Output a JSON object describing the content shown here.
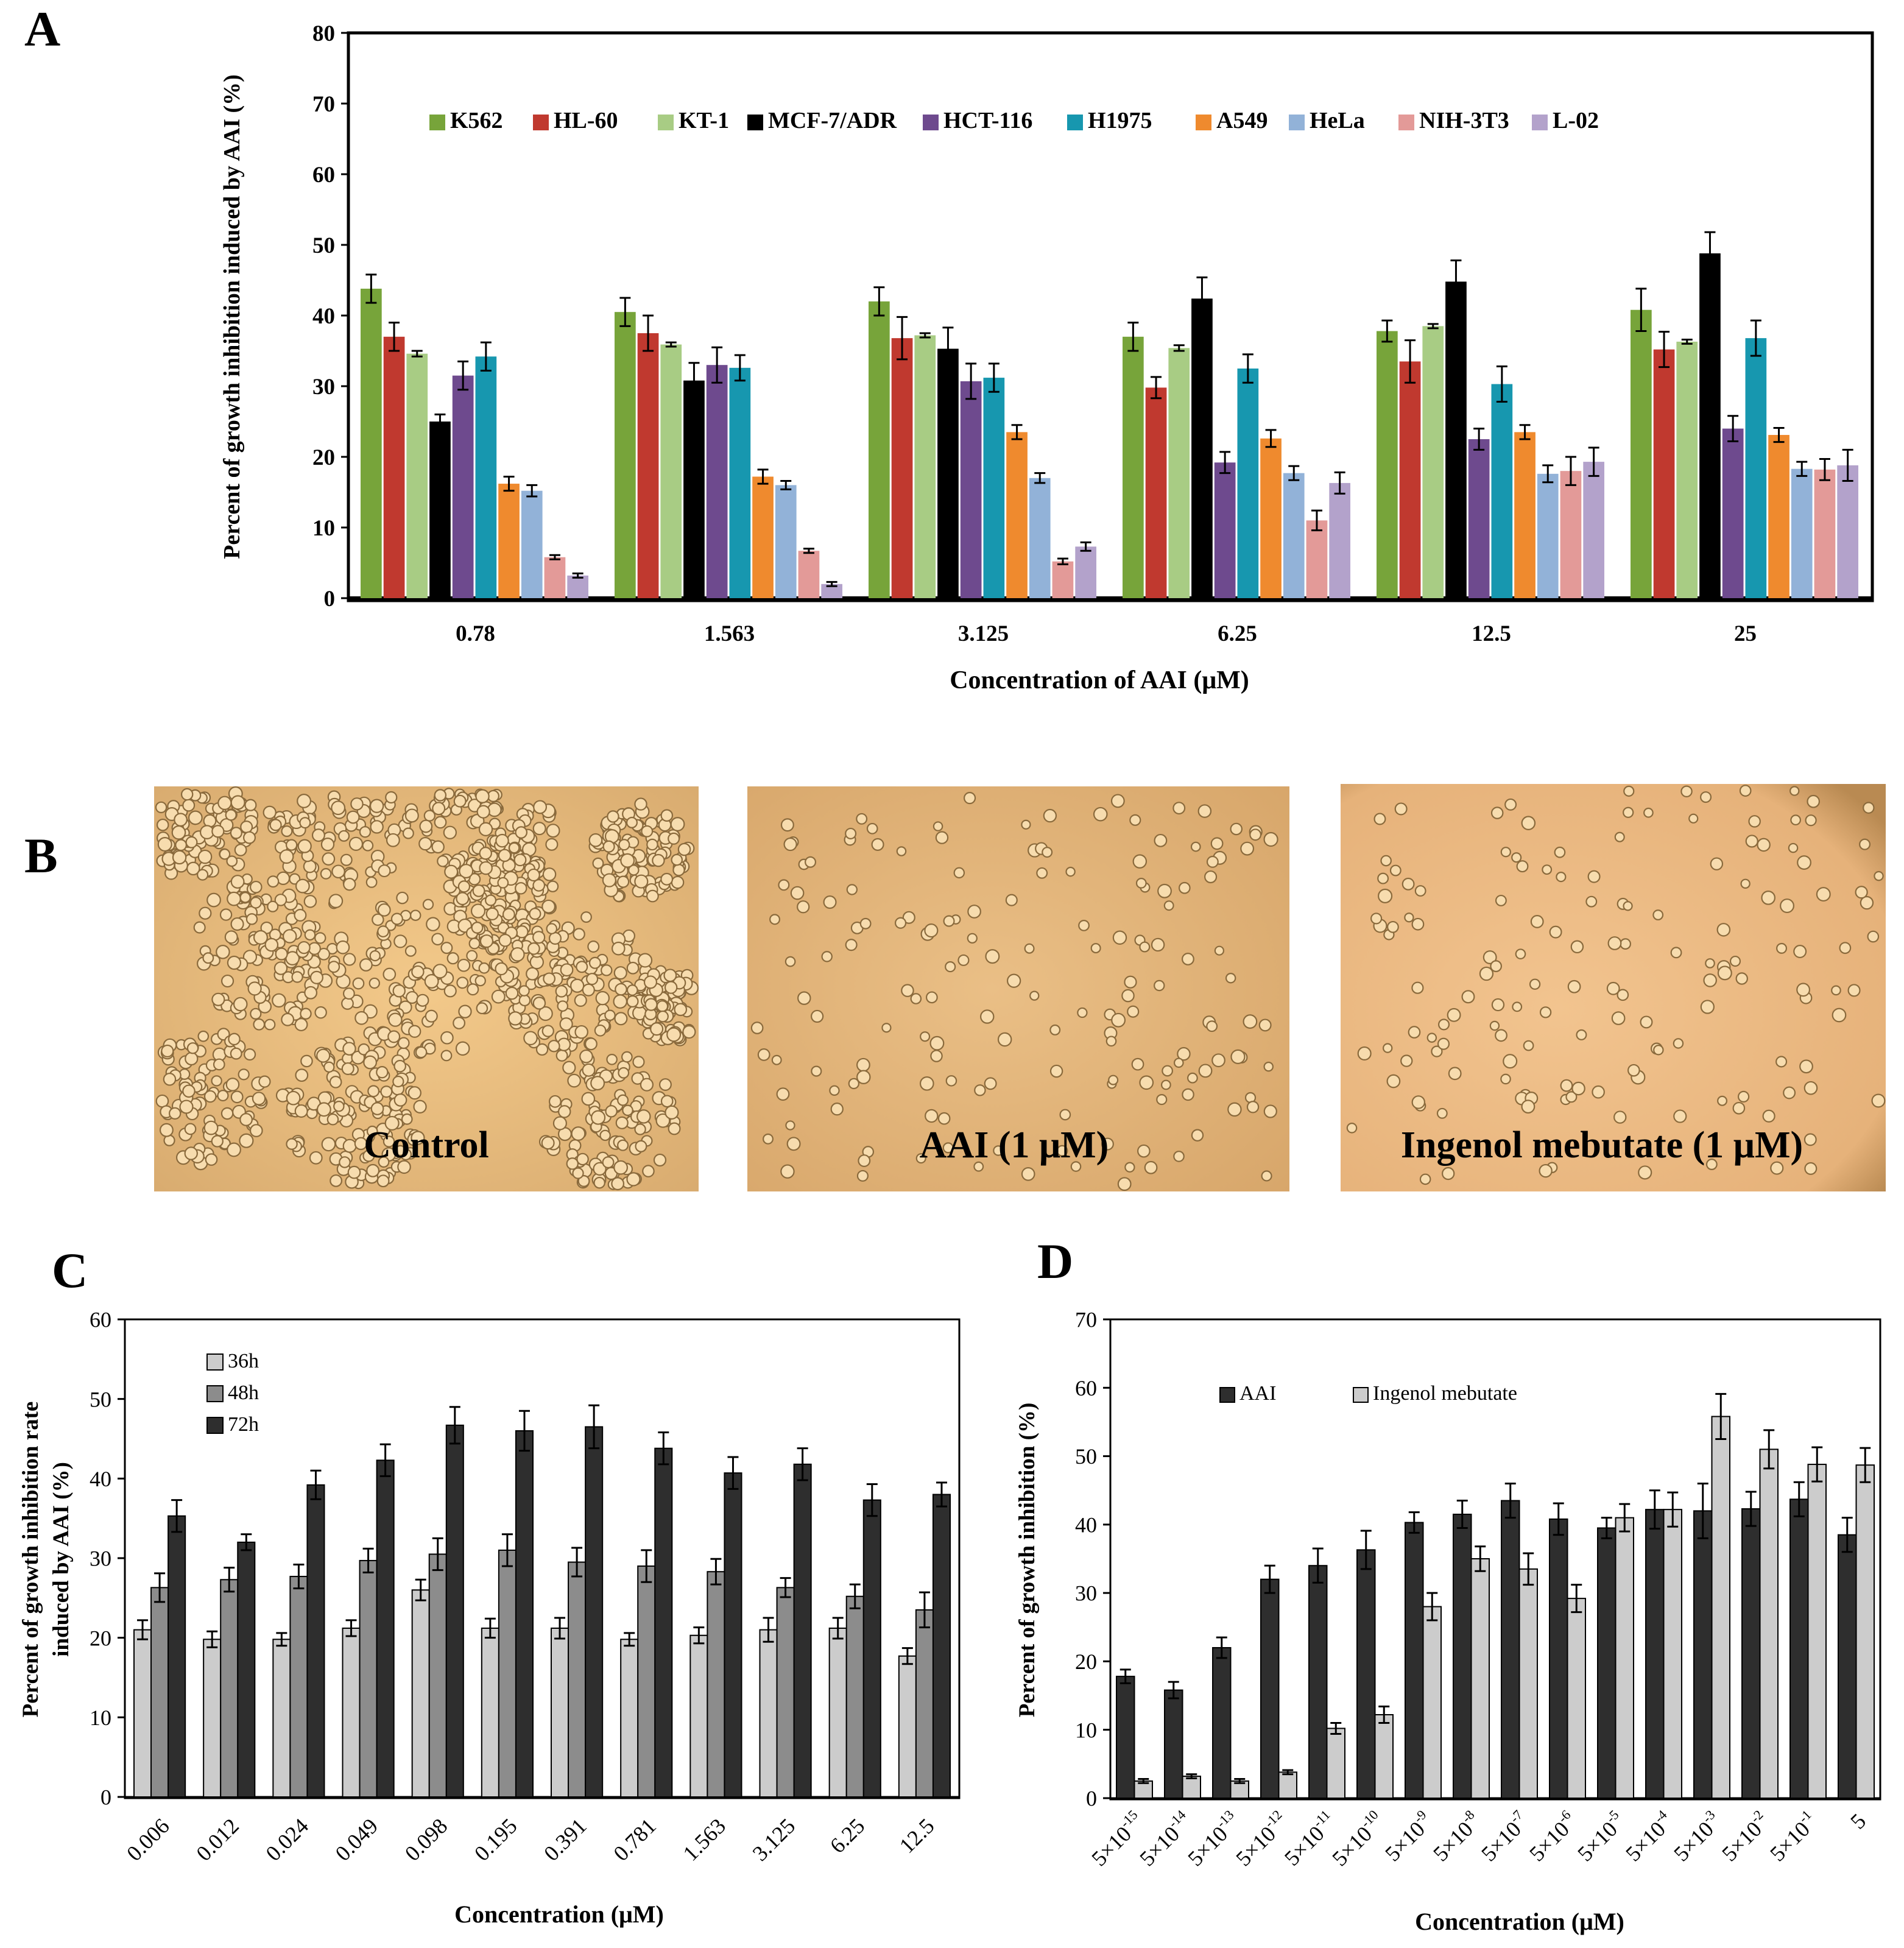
{
  "panels": {
    "A": "A",
    "B": "B",
    "C": "C",
    "D": "D"
  },
  "micrographs": [
    {
      "label": "Control"
    },
    {
      "label": "AAI (1 μM)"
    },
    {
      "label": "Ingenol mebutate (1 μM)"
    }
  ],
  "colors": {
    "K562": "#77a43a",
    "HL-60": "#c0392f",
    "KT-1": "#a8cc84",
    "MCF-7/ADR": "#000000",
    "HCT-116": "#6e4a8e",
    "H1975": "#1797af",
    "A549": "#ef8a2e",
    "HeLa": "#92b2d8",
    "NIH-3T3": "#e39a98",
    "L-02": "#b3a2cb",
    "h36": "#cccccc",
    "h48": "#8c8c8c",
    "h72": "#2e2e2e",
    "AAI": "#2e2e2e",
    "Ingenol": "#cccccc",
    "photo_control": "#e8bf80",
    "photo_aai": "#e3b57c",
    "photo_ingenol": "#ebbb87"
  },
  "chart_data": [
    {
      "panel": "A",
      "type": "bar",
      "title": "",
      "xlabel": "Concentration of AAI (μM)",
      "ylabel": "Percent of growth inhibition induced by AAI (%)",
      "ylim": [
        0,
        80
      ],
      "yticks": [
        "0",
        "10",
        "20",
        "30",
        "40",
        "50",
        "60",
        "70",
        "80"
      ],
      "categories": [
        "0.78",
        "1.563",
        "3.125",
        "6.25",
        "12.5",
        "25"
      ],
      "legend_position": "top",
      "series": [
        {
          "name": "K562",
          "color_key": "K562",
          "values": [
            43.8,
            40.5,
            42.0,
            37.0,
            37.8,
            40.8
          ],
          "errors": [
            2.0,
            2.0,
            2.0,
            2.0,
            1.5,
            3.0
          ]
        },
        {
          "name": "HL-60",
          "color_key": "HL-60",
          "values": [
            37.0,
            37.5,
            36.8,
            29.8,
            33.5,
            35.2
          ],
          "errors": [
            2.0,
            2.5,
            3.0,
            1.5,
            3.0,
            2.5
          ]
        },
        {
          "name": "KT-1",
          "color_key": "KT-1",
          "values": [
            34.6,
            35.9,
            37.2,
            35.4,
            38.5,
            36.3
          ],
          "errors": [
            0.4,
            0.3,
            0.3,
            0.4,
            0.3,
            0.3
          ]
        },
        {
          "name": "MCF-7/ADR",
          "color_key": "MCF-7/ADR",
          "values": [
            25.0,
            30.8,
            35.3,
            42.4,
            44.8,
            48.8
          ],
          "errors": [
            1.0,
            2.5,
            3.0,
            3.0,
            3.0,
            3.0
          ]
        },
        {
          "name": "HCT-116",
          "color_key": "HCT-116",
          "values": [
            31.5,
            33.0,
            30.7,
            19.2,
            22.5,
            24.0
          ],
          "errors": [
            2.0,
            2.5,
            2.5,
            1.5,
            1.5,
            1.8
          ]
        },
        {
          "name": "H1975",
          "color_key": "H1975",
          "values": [
            34.2,
            32.6,
            31.2,
            32.5,
            30.3,
            36.8
          ],
          "errors": [
            2.0,
            1.8,
            2.0,
            2.0,
            2.5,
            2.5
          ]
        },
        {
          "name": "A549",
          "color_key": "A549",
          "values": [
            16.2,
            17.2,
            23.5,
            22.6,
            23.5,
            23.1
          ],
          "errors": [
            1.0,
            1.0,
            1.0,
            1.2,
            1.0,
            1.0
          ]
        },
        {
          "name": "HeLa",
          "color_key": "HeLa",
          "values": [
            15.2,
            16.0,
            17.0,
            17.7,
            17.6,
            18.3
          ],
          "errors": [
            0.8,
            0.6,
            0.7,
            1.0,
            1.2,
            1.0
          ]
        },
        {
          "name": "NIH-3T3",
          "color_key": "NIH-3T3",
          "values": [
            5.8,
            6.7,
            5.2,
            11.0,
            18.0,
            18.2
          ],
          "errors": [
            0.3,
            0.3,
            0.4,
            1.4,
            2.0,
            1.5
          ]
        },
        {
          "name": "L-02",
          "color_key": "L-02",
          "values": [
            3.2,
            2.0,
            7.3,
            16.3,
            19.3,
            18.8
          ],
          "errors": [
            0.3,
            0.3,
            0.6,
            1.5,
            2.0,
            2.2
          ]
        }
      ]
    },
    {
      "panel": "C",
      "type": "bar",
      "title": "",
      "xlabel": "Concentration (μM)",
      "ylabel_lines": [
        "Percent of growth inhibition rate",
        "induced by AAI (%)"
      ],
      "ylim": [
        0,
        60
      ],
      "yticks": [
        "0",
        "10",
        "20",
        "30",
        "40",
        "50",
        "60"
      ],
      "categories": [
        "0.006",
        "0.012",
        "0.024",
        "0.049",
        "0.098",
        "0.195",
        "0.391",
        "0.781",
        "1.563",
        "3.125",
        "6.25",
        "12.5"
      ],
      "legend_position": "top-left",
      "series": [
        {
          "name": "36h",
          "color_key": "h36",
          "values": [
            21.0,
            19.8,
            19.8,
            21.2,
            26.0,
            21.2,
            21.2,
            19.8,
            20.3,
            21.0,
            21.2,
            17.7
          ],
          "errors": [
            1.2,
            1.0,
            0.8,
            1.0,
            1.3,
            1.2,
            1.3,
            0.8,
            1.0,
            1.5,
            1.3,
            1.0
          ]
        },
        {
          "name": "48h",
          "color_key": "h48",
          "values": [
            26.3,
            27.3,
            27.7,
            29.7,
            30.5,
            31.0,
            29.5,
            29.0,
            28.3,
            26.3,
            25.2,
            23.5
          ],
          "errors": [
            1.8,
            1.5,
            1.5,
            1.5,
            2.0,
            2.0,
            1.8,
            2.0,
            1.6,
            1.2,
            1.5,
            2.2
          ]
        },
        {
          "name": "72h",
          "color_key": "h72",
          "values": [
            35.3,
            32.0,
            39.2,
            42.3,
            46.7,
            46.0,
            46.5,
            43.8,
            40.7,
            41.8,
            37.3,
            38.0
          ],
          "errors": [
            2.0,
            1.0,
            1.8,
            2.0,
            2.3,
            2.5,
            2.7,
            2.0,
            2.0,
            2.0,
            2.0,
            1.5
          ]
        }
      ]
    },
    {
      "panel": "D",
      "type": "bar",
      "title": "",
      "xlabel": "Concentration  (μM)",
      "ylabel": "Percent of growth inhibition  (%)",
      "ylim": [
        0,
        70
      ],
      "yticks": [
        "0",
        "10",
        "20",
        "30",
        "40",
        "50",
        "60",
        "70"
      ],
      "categories": [
        {
          "base": "5×10",
          "exp": "-15"
        },
        {
          "base": "5×10",
          "exp": "-14"
        },
        {
          "base": "5×10",
          "exp": "-13"
        },
        {
          "base": "5×10",
          "exp": "-12"
        },
        {
          "base": "5×10",
          "exp": "-11"
        },
        {
          "base": "5×10",
          "exp": "-10"
        },
        {
          "base": "5×10",
          "exp": "-9"
        },
        {
          "base": "5×10",
          "exp": "-8"
        },
        {
          "base": "5×10",
          "exp": "-7"
        },
        {
          "base": "5×10",
          "exp": "-6"
        },
        {
          "base": "5×10",
          "exp": "-5"
        },
        {
          "base": "5×10",
          "exp": "-4"
        },
        {
          "base": "5×10",
          "exp": "-3"
        },
        {
          "base": "5×10",
          "exp": "-2"
        },
        {
          "base": "5×10",
          "exp": "-1"
        },
        {
          "base": "5",
          "exp": ""
        }
      ],
      "legend_position": "top-left",
      "series": [
        {
          "name": "AAI",
          "color_key": "AAI",
          "values": [
            17.8,
            15.8,
            22.0,
            32.0,
            34.0,
            36.3,
            40.3,
            41.5,
            43.5,
            40.8,
            39.5,
            42.2,
            42.0,
            42.3,
            43.7,
            38.5
          ],
          "errors": [
            1.0,
            1.2,
            1.5,
            2.0,
            2.5,
            2.8,
            1.5,
            2.0,
            2.5,
            2.3,
            1.5,
            2.8,
            4.0,
            2.5,
            2.5,
            2.5
          ]
        },
        {
          "name": "Ingenol mebutate",
          "color_key": "Ingenol",
          "values": [
            2.5,
            3.2,
            2.5,
            3.8,
            10.2,
            12.2,
            28.0,
            35.0,
            33.5,
            29.2,
            41.0,
            42.2,
            55.8,
            51.0,
            48.8,
            48.7
          ],
          "errors": [
            0.3,
            0.3,
            0.3,
            0.3,
            0.8,
            1.2,
            2.0,
            1.8,
            2.3,
            2.0,
            2.0,
            2.5,
            3.3,
            2.8,
            2.5,
            2.5
          ]
        }
      ]
    }
  ]
}
